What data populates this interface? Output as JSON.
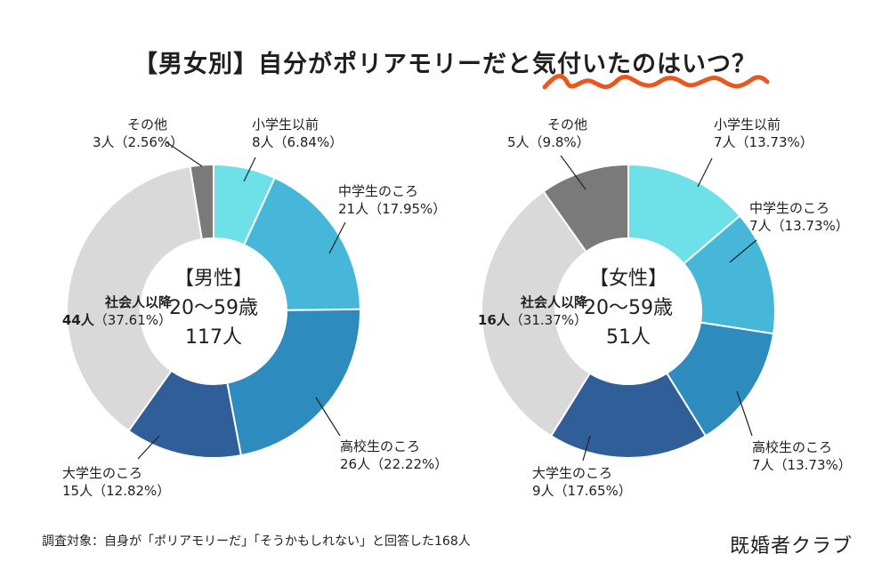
{
  "title": "【男女別】自分がポリアモリーだと気付いたのはいつ？",
  "colors": {
    "accent_squiggle": "#e8571e",
    "cat_elementary": "#6ee0e8",
    "cat_junior_high": "#47b7d9",
    "cat_high_school": "#2d8bbd",
    "cat_university": "#2f5e99",
    "cat_working_adult": "#d9d9d9",
    "cat_other": "#7a7a7a"
  },
  "chart_data": [
    {
      "type": "pie",
      "center": {
        "line1": "【男性】",
        "line2": "20〜59歳",
        "line3": "117人"
      },
      "slices": [
        {
          "name": "小学生以前",
          "count_label": "8人",
          "pct_label": "（6.84%）",
          "value": 8,
          "percent": 6.84,
          "color": "#6ee0e8"
        },
        {
          "name": "中学生のころ",
          "count_label": "21人",
          "pct_label": "（17.95%）",
          "value": 21,
          "percent": 17.95,
          "color": "#47b7d9"
        },
        {
          "name": "高校生のころ",
          "count_label": "26人",
          "pct_label": "（22.22%）",
          "value": 26,
          "percent": 22.22,
          "color": "#2d8bbd"
        },
        {
          "name": "大学生のころ",
          "count_label": "15人",
          "pct_label": "（12.82%）",
          "value": 15,
          "percent": 12.82,
          "color": "#2f5e99"
        },
        {
          "name": "社会人以降",
          "count_label": "44人",
          "pct_label": "（37.61%）",
          "value": 44,
          "percent": 37.61,
          "color": "#d9d9d9"
        },
        {
          "name": "その他",
          "count_label": "3人",
          "pct_label": "（2.56%）",
          "value": 3,
          "percent": 2.56,
          "color": "#7a7a7a"
        }
      ]
    },
    {
      "type": "pie",
      "center": {
        "line1": "【女性】",
        "line2": "20〜59歳",
        "line3": "51人"
      },
      "slices": [
        {
          "name": "小学生以前",
          "count_label": "7人",
          "pct_label": "（13.73%）",
          "value": 7,
          "percent": 13.73,
          "color": "#6ee0e8"
        },
        {
          "name": "中学生のころ",
          "count_label": "7人",
          "pct_label": "（13.73%）",
          "value": 7,
          "percent": 13.73,
          "color": "#47b7d9"
        },
        {
          "name": "高校生のころ",
          "count_label": "7人",
          "pct_label": "（13.73%）",
          "value": 7,
          "percent": 13.73,
          "color": "#2d8bbd"
        },
        {
          "name": "大学生のころ",
          "count_label": "9人",
          "pct_label": "（17.65%）",
          "value": 9,
          "percent": 17.65,
          "color": "#2f5e99"
        },
        {
          "name": "社会人以降",
          "count_label": "16人",
          "pct_label": "（31.37%）",
          "value": 16,
          "percent": 31.37,
          "color": "#d9d9d9"
        },
        {
          "name": "その他",
          "count_label": "5人",
          "pct_label": "（9.8%）",
          "value": 5,
          "percent": 9.8,
          "color": "#7a7a7a"
        }
      ]
    }
  ],
  "footer": {
    "note": "調査対象：自身が「ポリアモリーだ」「そうかもしれない」と回答した168人",
    "brand": "既婚者クラブ"
  }
}
